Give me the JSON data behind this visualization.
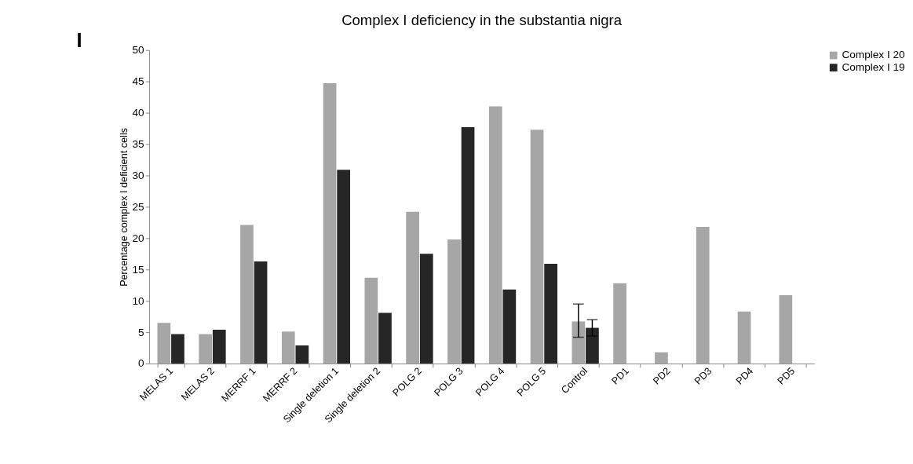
{
  "chart_data": {
    "type": "bar",
    "title": "Complex I deficiency in the substantia nigra",
    "ylabel": "Percentage complex I deficient cells",
    "annotations": [
      "I"
    ],
    "categories": [
      "MELAS 1",
      "MELAS 2",
      "MERRF 1",
      "MERRF 2",
      "Single deletion 1",
      "Single deletion 2",
      "POLG 2",
      "POLG 3",
      "POLG 4",
      "POLG 5",
      "Control",
      "PD1",
      "PD2",
      "PD3",
      "PD4",
      "PD5"
    ],
    "series": [
      {
        "name": "Complex I 20",
        "color": "#a6a6a6",
        "values": [
          6.5,
          4.7,
          22.1,
          5.1,
          44.7,
          13.7,
          24.2,
          19.8,
          41.0,
          37.3,
          6.7,
          12.8,
          1.8,
          21.8,
          8.3,
          10.9
        ],
        "errors": [
          null,
          null,
          null,
          null,
          null,
          null,
          null,
          null,
          null,
          null,
          [
            4.2,
            9.5
          ],
          null,
          null,
          null,
          null,
          null
        ]
      },
      {
        "name": "Complex I 19",
        "color": "#262626",
        "values": [
          4.7,
          5.4,
          16.3,
          2.9,
          30.9,
          8.1,
          17.5,
          37.7,
          11.8,
          15.9,
          5.7,
          null,
          null,
          null,
          null,
          null
        ],
        "errors": [
          null,
          null,
          null,
          null,
          null,
          null,
          null,
          null,
          null,
          null,
          1.3,
          null,
          null,
          null,
          null,
          null
        ]
      }
    ],
    "ylim": [
      0,
      50
    ],
    "yticks": [
      0,
      5,
      10,
      15,
      20,
      25,
      30,
      35,
      40,
      45,
      50
    ],
    "grid": false,
    "legend": "right"
  }
}
